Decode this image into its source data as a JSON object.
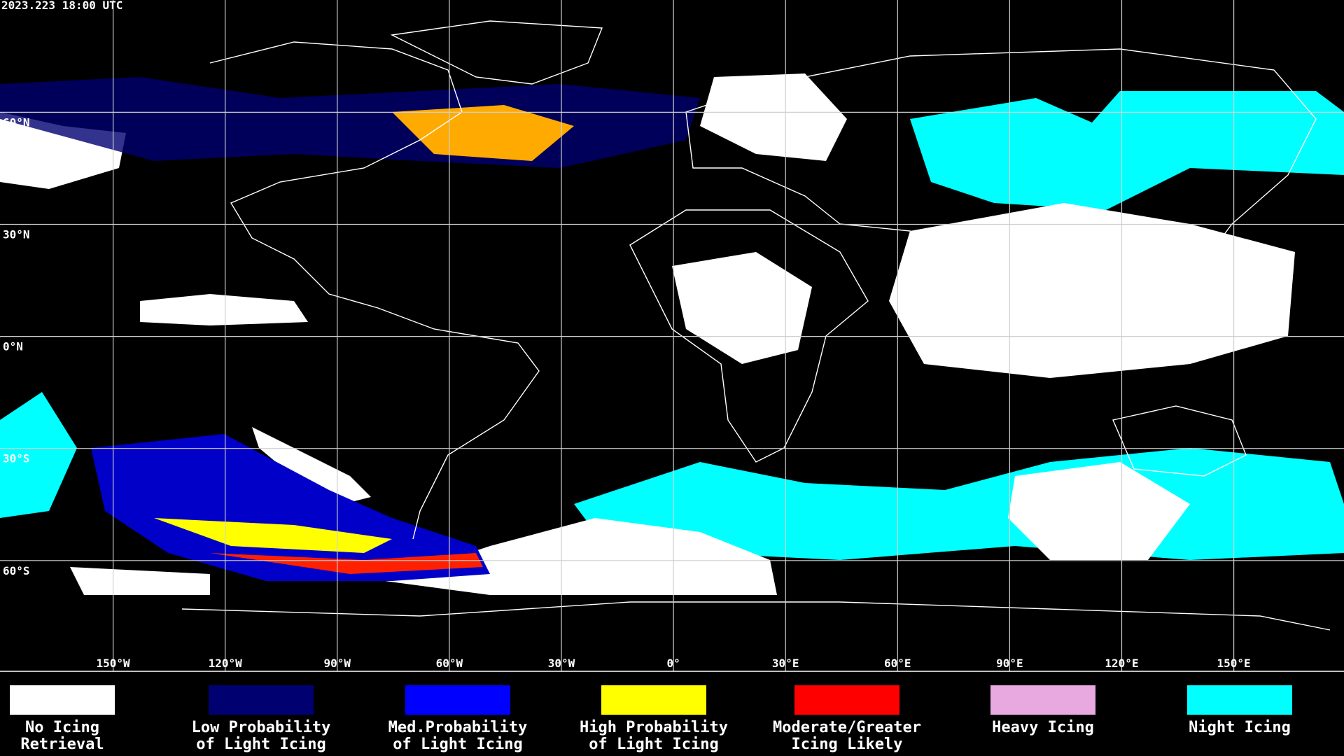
{
  "header": {
    "title": "2023.223 18:00 UTC"
  },
  "map": {
    "lat_labels": [
      "60°N",
      "30°N",
      "0°N",
      "30°S",
      "60°S"
    ],
    "lon_labels": [
      "150°W",
      "120°W",
      "90°W",
      "60°W",
      "30°W",
      "0°",
      "30°E",
      "60°E",
      "90°E",
      "120°E",
      "150°E"
    ]
  },
  "legend": [
    {
      "lines": [
        "No Icing",
        "Retrieval"
      ],
      "color": "#ffffff"
    },
    {
      "lines": [
        "Low Probability",
        "of Light Icing"
      ],
      "color": "#000070"
    },
    {
      "lines": [
        "Med.Probability",
        "of Light Icing"
      ],
      "color": "#0000ff"
    },
    {
      "lines": [
        "High Probability",
        "of Light Icing"
      ],
      "color": "#ffff00"
    },
    {
      "lines": [
        "Moderate/Greater",
        "Icing Likely"
      ],
      "color": "#ff0000"
    },
    {
      "lines": [
        "Heavy Icing"
      ],
      "color": "#e8a8e0"
    },
    {
      "lines": [
        "Night Icing"
      ],
      "color": "#00ffff"
    }
  ]
}
